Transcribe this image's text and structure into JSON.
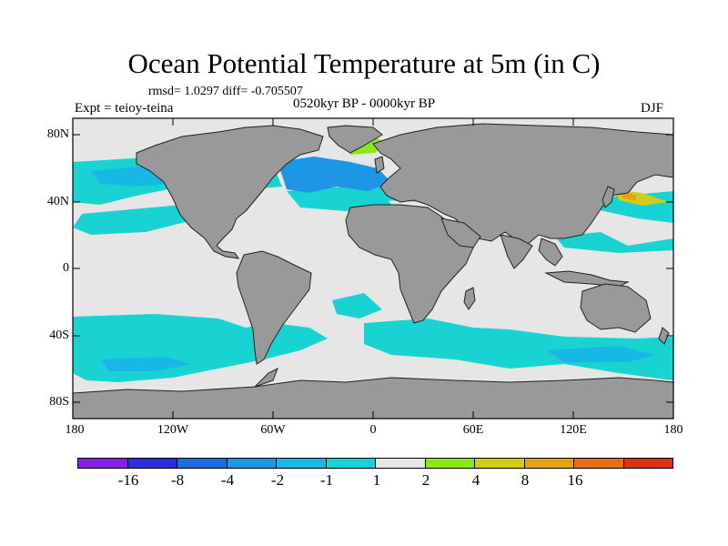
{
  "title": "Ocean Potential Temperature at 5m (in C)",
  "stats": "rmsd= 1.0297 diff= -0.705507",
  "experiment": "Expt = teioy-teina",
  "period": "0520kyr BP - 0000kyr BP",
  "season": "DJF",
  "y_ticks": [
    "80N",
    "40N",
    "0",
    "40S",
    "80S"
  ],
  "x_ticks": [
    "180",
    "120W",
    "60W",
    "0",
    "60E",
    "120E",
    "180"
  ],
  "colorbar": {
    "colors": [
      "#8b1ee6",
      "#2d2ddc",
      "#1a6fe0",
      "#1e96e6",
      "#18b8e6",
      "#19d2d2",
      "#e6e6e6",
      "#8ce61a",
      "#d2cd14",
      "#e6a014",
      "#e66e14",
      "#dc3214"
    ],
    "labels": [
      "-16",
      "-8",
      "-4",
      "-2",
      "-1",
      "1",
      "2",
      "4",
      "8",
      "16"
    ]
  },
  "map_colors": {
    "land": "#999999",
    "ocean_neutral": "#e6e6e6",
    "anomaly_minus1": "#19d2d2",
    "anomaly_minus2": "#18b8e6",
    "anomaly_minus4": "#1e96e6",
    "anomaly_plus2": "#8ce61a",
    "anomaly_plus4": "#d2cd14",
    "anomaly_plus8": "#e6a014"
  }
}
